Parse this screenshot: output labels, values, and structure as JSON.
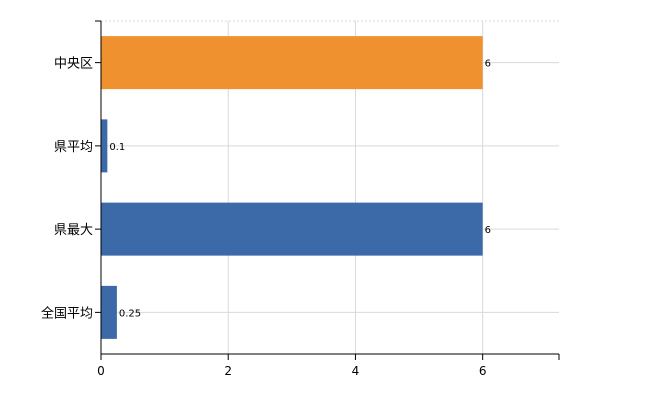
{
  "chart_data": {
    "type": "bar",
    "orientation": "horizontal",
    "title": "",
    "xlabel": "",
    "ylabel": "",
    "categories": [
      "中央区",
      "県平均",
      "県最大",
      "全国平均"
    ],
    "values": [
      6,
      0.1,
      6,
      0.25
    ],
    "value_labels": [
      "6",
      "0.1",
      "6",
      "0.25"
    ],
    "colors": [
      "#f0912f",
      "#3c6aa8",
      "#3c6aa8",
      "#3c6aa8"
    ],
    "xlim": [
      0,
      7.2
    ],
    "xticks": [
      0,
      2,
      4,
      6
    ],
    "xtick_labels": [
      "0",
      "2",
      "4",
      "6"
    ],
    "grid": true,
    "legend": "none"
  }
}
